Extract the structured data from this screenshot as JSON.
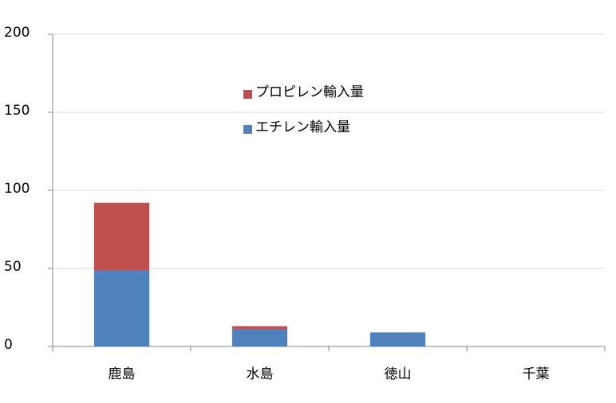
{
  "chart_data": {
    "type": "stacked_bar",
    "categories": [
      "鹿島",
      "水島",
      "徳山",
      "千葉"
    ],
    "series": [
      {
        "name": "エチレン輸入量",
        "color": "#4f81bd",
        "values": [
          49,
          11,
          9,
          0
        ]
      },
      {
        "name": "プロピレン輸入量",
        "color": "#c0504d",
        "values": [
          43,
          2,
          0,
          0
        ]
      }
    ],
    "ylim": [
      0,
      200
    ],
    "yticks": [
      0,
      50,
      100,
      150,
      200
    ],
    "grid": true
  }
}
